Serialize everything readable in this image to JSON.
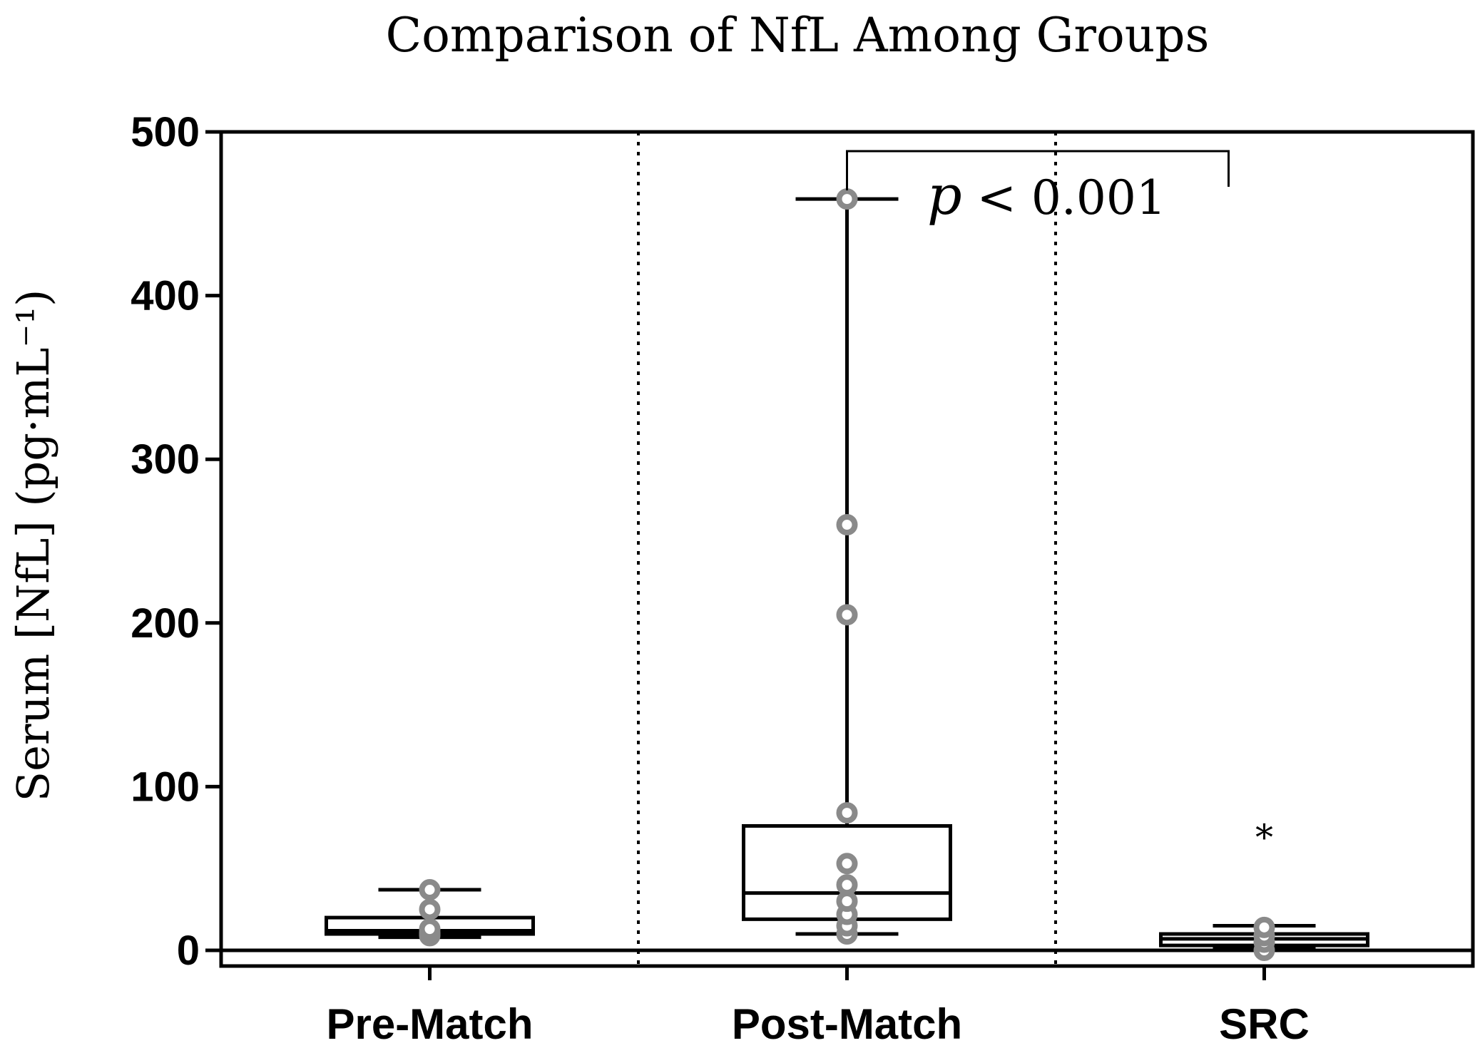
{
  "chart_data": {
    "type": "box",
    "title": "Comparison of NfL Among Groups",
    "ylabel": "Serum [NfL] (pg·mL⁻¹)",
    "xlabel": "",
    "ylim": [
      -10,
      500
    ],
    "yticks": [
      0,
      100,
      200,
      300,
      400,
      500
    ],
    "yticklabels": [
      "0",
      "100",
      "200",
      "300",
      "400",
      "500"
    ],
    "grid": false,
    "categories": [
      "Pre-Match",
      "Post-Match",
      "SRC"
    ],
    "boxes": [
      {
        "category": "Pre-Match",
        "whisker_low": 8,
        "q1": 10,
        "median": 12,
        "q3": 20,
        "whisker_high": 37,
        "points": [
          9,
          10,
          11,
          13,
          25,
          37
        ]
      },
      {
        "category": "Post-Match",
        "whisker_low": 10,
        "q1": 19,
        "median": 35,
        "q3": 76,
        "whisker_high": 459,
        "points": [
          10,
          15,
          22,
          30,
          40,
          53,
          84,
          205,
          260,
          459
        ]
      },
      {
        "category": "SRC",
        "whisker_low": 2,
        "q1": 3,
        "median": 7,
        "q3": 10,
        "whisker_high": 15,
        "points": [
          0,
          5,
          9,
          14
        ]
      }
    ],
    "annotations": [
      {
        "type": "significance",
        "from": "Post-Match",
        "to": "SRC",
        "text_p": "p",
        "text_rest": " < 0.001"
      },
      {
        "type": "marker",
        "category": "SRC",
        "text": "*"
      }
    ],
    "colors": {
      "box": "#000000",
      "points": "#8a8a8a"
    }
  }
}
